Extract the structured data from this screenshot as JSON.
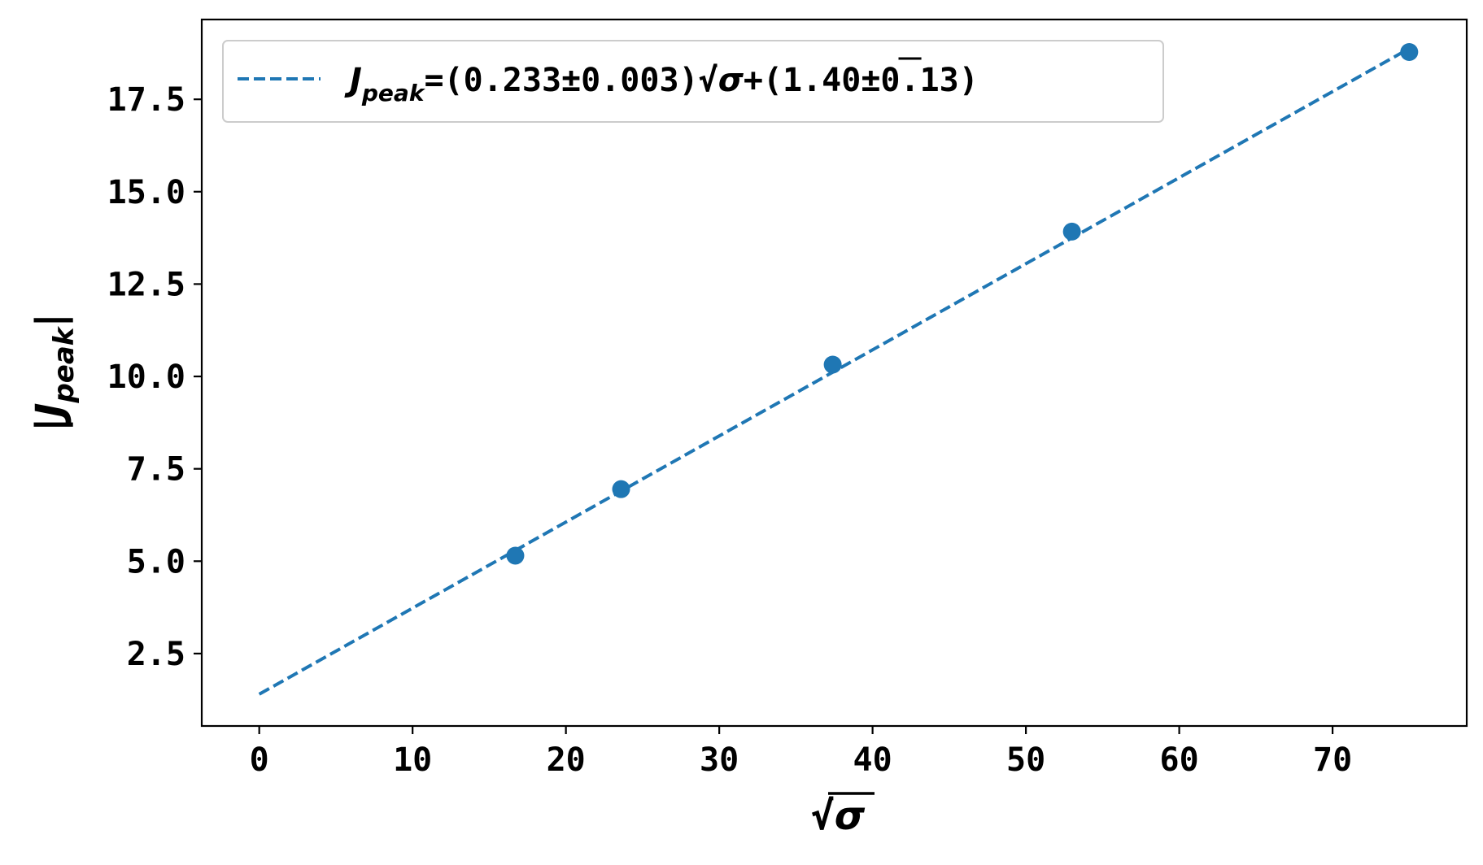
{
  "chart_data": {
    "type": "scatter",
    "xlabel": "√σ",
    "ylabel": "|J_peak|",
    "xlim": [
      -3.75,
      78.75
    ],
    "ylim": [
      0.54,
      19.66
    ],
    "x_ticks": [
      0,
      10,
      20,
      30,
      40,
      50,
      60,
      70
    ],
    "x_tick_labels": [
      "0",
      "10",
      "20",
      "30",
      "40",
      "50",
      "60",
      "70"
    ],
    "y_ticks": [
      2.5,
      5.0,
      7.5,
      10.0,
      12.5,
      15.0,
      17.5
    ],
    "y_tick_labels": [
      "2.5",
      "5.0",
      "7.5",
      "10.0",
      "12.5",
      "15.0",
      "17.5"
    ],
    "grid": false,
    "legend_position": "top-left",
    "points": {
      "x": [
        16.7,
        23.6,
        37.4,
        53.0,
        75.0
      ],
      "y": [
        5.15,
        6.95,
        10.32,
        13.92,
        18.78
      ],
      "color": "#1f77b4"
    },
    "fit_line": {
      "name": "J_peak=(0.233±0.003)√σ+(1.40±0.13)",
      "slope": 0.233,
      "intercept": 1.4,
      "x_range": [
        0,
        75
      ],
      "style": "dashed",
      "color": "#1f77b4"
    },
    "legend": {
      "label_J": "J",
      "label_sub": "peak",
      "label_rest_1": "=(0.233±0.003)√",
      "label_sigma": "σ",
      "label_rest_2": "+(1.40±0.13)"
    }
  }
}
